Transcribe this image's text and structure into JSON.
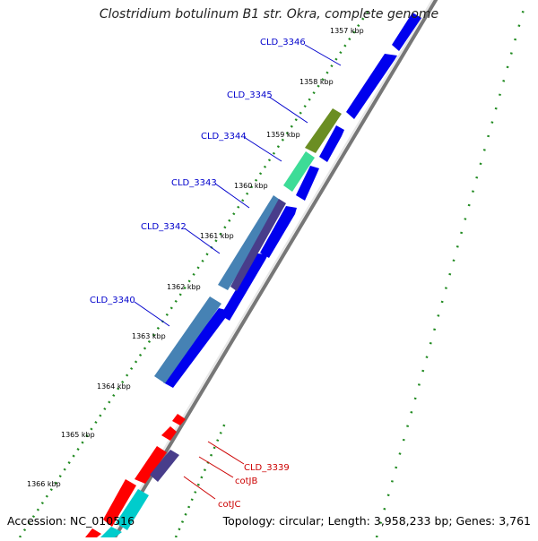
{
  "title": "Clostridium botulinum B1 str. Okra, complete genome",
  "footer": {
    "accession": "Accession: NC_010516",
    "summary": "Topology: circular; Length: 3,958,233 bp; Genes: 3,761"
  },
  "ticks": [
    "1357 kbp",
    "1358 kbp",
    "1359 kbp",
    "1360 kbp",
    "1361 kbp",
    "1362 kbp",
    "1363 kbp",
    "1364 kbp",
    "1365 kbp",
    "1366 kbp"
  ],
  "labels": [
    {
      "text": "CLD_3346",
      "color": "#0000cc"
    },
    {
      "text": "CLD_3345",
      "color": "#0000cc"
    },
    {
      "text": "CLD_3344",
      "color": "#0000cc"
    },
    {
      "text": "CLD_3343",
      "color": "#0000cc"
    },
    {
      "text": "CLD_3342",
      "color": "#0000cc"
    },
    {
      "text": "CLD_3340",
      "color": "#0000cc"
    },
    {
      "text": "CLD_3339",
      "color": "#cc0000"
    },
    {
      "text": "cotJB",
      "color": "#cc0000"
    },
    {
      "text": "cotJC",
      "color": "#cc0000"
    }
  ],
  "colors": {
    "forward_cds": "#0000ee",
    "cds_olive": "#6b8e23",
    "cds_seagreen": "#3ddc97",
    "cds_steelblue": "#4682b4",
    "cds_slate": "#483d8b",
    "cds_red": "#ff0000",
    "cds_cyan": "#00cccc",
    "tick_green": "#228b22",
    "backbone": "#888888"
  }
}
